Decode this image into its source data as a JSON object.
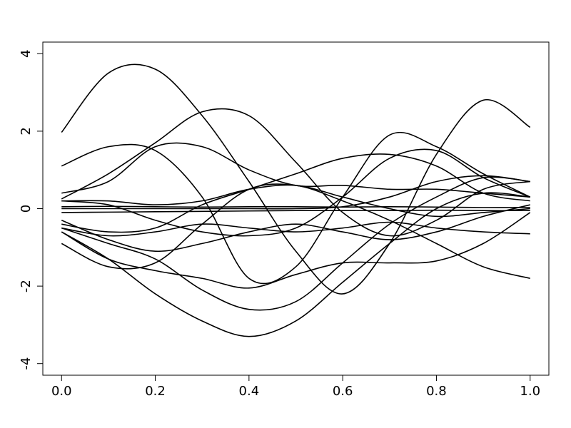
{
  "chart_data": {
    "type": "line",
    "x": [
      0,
      0.1,
      0.2,
      0.3,
      0.4,
      0.5,
      0.6,
      0.7,
      0.8,
      0.9,
      1.0
    ],
    "xlim": [
      -0.04,
      1.04
    ],
    "ylim": [
      -4.3,
      4.3
    ],
    "xticks": [
      {
        "value": 0,
        "label": "0.0"
      },
      0.2,
      0.4,
      0.6,
      0.8,
      {
        "value": 1,
        "label": "1.0"
      }
    ],
    "yticks": [
      -4,
      -2,
      0,
      2,
      4
    ],
    "series": [
      {
        "color": "#000000",
        "values": [
          1.97,
          3.5,
          3.6,
          2.4,
          0.7,
          -1.1,
          -2.2,
          -0.9,
          1.4,
          2.8,
          2.1
        ]
      },
      {
        "color": "#000000",
        "values": [
          0.25,
          0.9,
          1.7,
          2.5,
          2.4,
          1.2,
          -0.1,
          -0.7,
          -0.3,
          0.5,
          0.7
        ]
      },
      {
        "color": "#000000",
        "values": [
          1.1,
          1.6,
          1.5,
          0.3,
          -1.8,
          -1.5,
          0.3,
          1.9,
          1.6,
          0.9,
          0.3
        ]
      },
      {
        "color": "#000000",
        "values": [
          0.4,
          0.7,
          1.6,
          1.6,
          1.0,
          0.6,
          0.6,
          0.5,
          0.5,
          0.4,
          0.3
        ]
      },
      {
        "color": "#000000",
        "values": [
          -0.6,
          -1.3,
          -2.2,
          -2.9,
          -3.3,
          -2.9,
          -1.9,
          -0.9,
          0.0,
          0.4,
          0.3
        ]
      },
      {
        "color": "#000000",
        "values": [
          -0.5,
          -0.9,
          -1.3,
          -2.1,
          -2.6,
          -2.4,
          -1.4,
          -0.4,
          0.3,
          0.8,
          0.7
        ]
      },
      {
        "color": "#000000",
        "values": [
          -0.9,
          -1.5,
          -1.4,
          -0.4,
          0.5,
          0.6,
          0.2,
          -0.3,
          -0.9,
          -1.5,
          -1.8
        ]
      },
      {
        "color": "#000000",
        "values": [
          -0.6,
          -1.3,
          -1.6,
          -1.8,
          -2.05,
          -1.7,
          -1.4,
          -1.4,
          -1.35,
          -0.9,
          -0.1
        ]
      },
      {
        "color": "#000000",
        "values": [
          -0.4,
          -0.6,
          -0.5,
          0.1,
          0.5,
          0.9,
          1.3,
          1.4,
          1.1,
          0.4,
          0.2
        ]
      },
      {
        "color": "#000000",
        "values": [
          0.2,
          0.1,
          -0.3,
          -0.6,
          -0.7,
          -0.5,
          0.3,
          1.3,
          1.5,
          0.8,
          0.3
        ]
      },
      {
        "color": "#000000",
        "values": [
          -0.5,
          -0.7,
          -0.6,
          -0.4,
          -0.5,
          -0.6,
          -0.5,
          -0.35,
          -0.5,
          -0.6,
          -0.65
        ]
      },
      {
        "color": "#000000",
        "values": [
          0.05,
          0.06,
          0.05,
          0.04,
          0.05,
          0.05,
          0.04,
          0.05,
          0.04,
          0.03,
          0.03
        ]
      },
      {
        "color": "#000000",
        "values": [
          -0.1,
          -0.09,
          -0.08,
          -0.07,
          -0.06,
          -0.05,
          -0.05,
          -0.05,
          -0.04,
          -0.05,
          -0.05
        ]
      },
      {
        "color": "#000000",
        "values": [
          0.2,
          0.2,
          0.1,
          0.2,
          0.5,
          0.6,
          0.3,
          0.0,
          -0.2,
          -0.1,
          0.0
        ]
      },
      {
        "color": "#000000",
        "values": [
          -0.3,
          -0.8,
          -1.1,
          -0.9,
          -0.6,
          -0.4,
          -0.6,
          -0.8,
          -0.6,
          -0.2,
          0.1
        ]
      },
      {
        "color": "#000000",
        "values": [
          0.0,
          0.0,
          0.0,
          0.0,
          0.0,
          0.0,
          0.05,
          0.3,
          0.7,
          0.85,
          0.7
        ]
      }
    ]
  }
}
